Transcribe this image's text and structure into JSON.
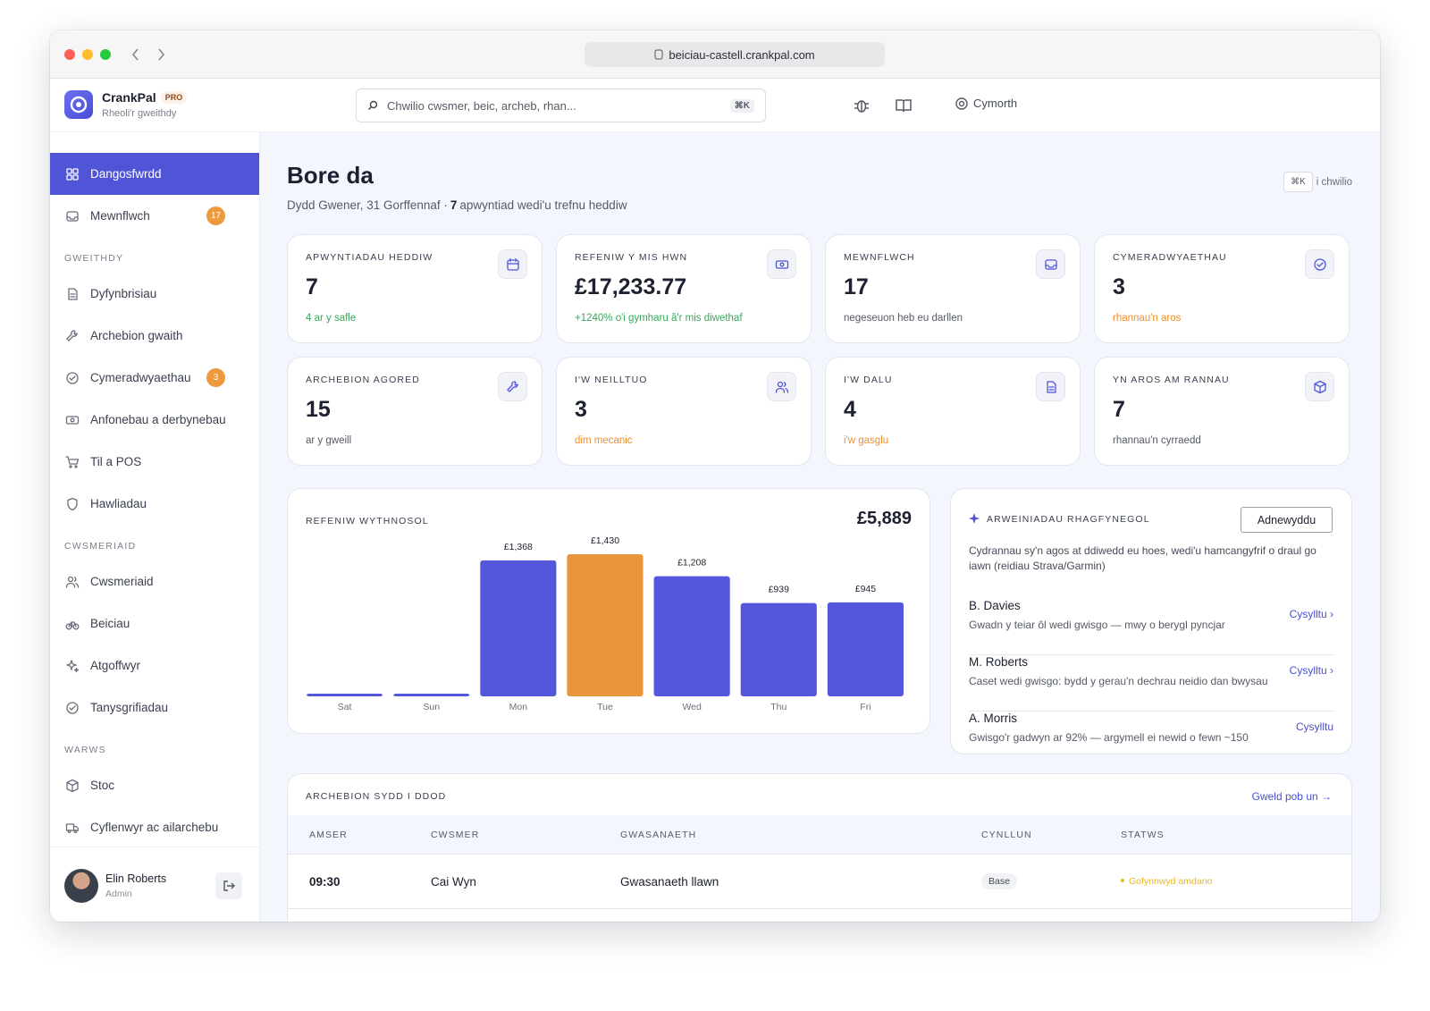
{
  "browser": {
    "url": "beiciau-castell.crankpal.com"
  },
  "header": {
    "brand": "CrankPal",
    "badge": "PRO",
    "tagline": "Rheoli'r gweithdy",
    "search_placeholder": "Chwilio cwsmer, beic, archeb, rhan...",
    "search_shortcut": "⌘K",
    "help": "Cymorth"
  },
  "sidebar": {
    "items": [
      {
        "label": "Dangosfwrdd",
        "active": true
      },
      {
        "label": "Mewnflwch",
        "badge": 17
      }
    ],
    "sections": [
      {
        "title": "GWEITHDY",
        "items": [
          {
            "label": "Dyfynbrisiau"
          },
          {
            "label": "Archebion gwaith"
          },
          {
            "label": "Cymeradwyaethau",
            "badge": 3
          },
          {
            "label": "Anfonebau a derbynebau"
          },
          {
            "label": "Til a POS"
          },
          {
            "label": "Hawliadau"
          }
        ]
      },
      {
        "title": "CWSMERIAID",
        "items": [
          {
            "label": "Cwsmeriaid"
          },
          {
            "label": "Beiciau"
          },
          {
            "label": "Atgoffwyr"
          },
          {
            "label": "Tanysgrifiadau"
          }
        ]
      },
      {
        "title": "WARWS",
        "items": [
          {
            "label": "Stoc"
          },
          {
            "label": "Cyflenwyr ac ailarchebu"
          }
        ]
      }
    ],
    "user": {
      "name": "Elin Roberts",
      "role": "Admin"
    }
  },
  "greeting": {
    "title": "Bore da",
    "date": "Dydd Gwener, 31 Gorffennaf ·",
    "count": 7,
    "suffix": "apwyntiad wedi'u trefnu heddiw",
    "hint_key": "⌘K",
    "hint_text": "i chwilio"
  },
  "stats": [
    {
      "label": "APWYNTIADAU HEDDIW",
      "value": 7,
      "note": "4 ar y safle",
      "note_color": "#3aa65a"
    },
    {
      "label": "REFENIW Y MIS HWN",
      "value": 17233.77,
      "value_label": "£17,233.77",
      "note": "+1240% o'i gymharu â'r mis diwethaf",
      "note_color": "#3aa65a"
    },
    {
      "label": "MEWNFLWCH",
      "value": 17,
      "note": "negeseuon heb eu darllen",
      "note_color": "#555a66"
    },
    {
      "label": "CYMERADWYAETHAU",
      "value": 3,
      "note": "rhannau'n aros",
      "note_color": "#ec8f2f"
    },
    {
      "label": "ARCHEBION AGORED",
      "value": 15,
      "note": "ar y gweill",
      "note_color": "#555a66"
    },
    {
      "label": "I'W NEILLTUO",
      "value": 3,
      "note": "dim mecanic",
      "note_color": "#ec8f2f"
    },
    {
      "label": "I'W DALU",
      "value": 4,
      "note": "i'w gasglu",
      "note_color": "#ec8f2f"
    },
    {
      "label": "YN AROS AM RANNAU",
      "value": 7,
      "note": "rhannau'n cyrraedd",
      "note_color": "#555a66"
    }
  ],
  "chart_data": {
    "type": "bar",
    "title": "REFENIW WYTHNOSOL",
    "total": 5889,
    "total_label": "£5,889",
    "categories": [
      "Sat",
      "Sun",
      "Mon",
      "Tue",
      "Wed",
      "Thu",
      "Fri"
    ],
    "values": [
      0,
      0,
      1368,
      1430,
      1208,
      939,
      945
    ],
    "value_labels": [
      null,
      null,
      "£1,368",
      "£1,430",
      "£1,208",
      "£939",
      "£945"
    ],
    "colors": [
      "#5457dc",
      "#5457dc",
      "#5457dc",
      "#e9953c",
      "#5457dc",
      "#5457dc",
      "#5457dc"
    ]
  },
  "leads": {
    "title": "ARWEINIADAU RHAGFYNEGOL",
    "button": "Adnewyddu",
    "description": "Cydrannau sy'n agos at ddiwedd eu hoes, wedi'u hamcangyfrif o draul go iawn (reidiau Strava/Garmin)",
    "items": [
      {
        "name": "B. Davies",
        "detail": "Gwadn y teiar ôl wedi gwisgo — mwy o berygl pyncjar",
        "action": "Cysylltu ›"
      },
      {
        "name": "M. Roberts",
        "detail": "Caset wedi gwisgo: bydd y gerau'n dechrau neidio dan bwysau",
        "action": "Cysylltu ›"
      },
      {
        "name": "A. Morris",
        "detail": "Gwisgo'r gadwyn ar 92% — argymell ei newid o fewn ~150",
        "action": "Cysylltu"
      }
    ]
  },
  "table": {
    "title": "ARCHEBION SYDD I DDOD",
    "link": "Gweld pob un →",
    "columns": [
      "AMSER",
      "CWSMER",
      "GWASANAETH",
      "CYNLLUN",
      "STATWS"
    ],
    "rows": [
      [
        "09:30",
        "Cai Wyn",
        "Gwasanaeth llawn",
        "Base",
        "Gofynnwyd amdano"
      ]
    ]
  }
}
